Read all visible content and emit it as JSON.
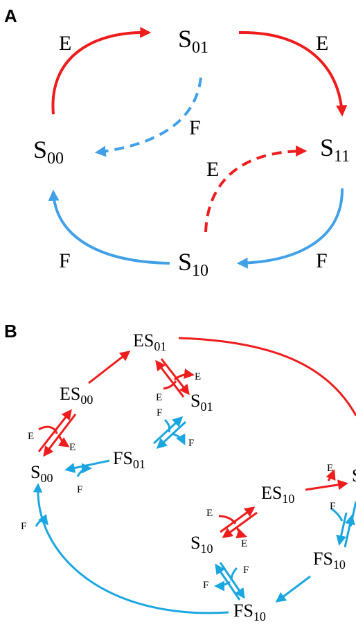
{
  "colors": {
    "E_red": "#ee1c1c",
    "F_blue": "#41a0e6",
    "F_cyan": "#1aa6e0"
  },
  "panel_a": {
    "label": "A",
    "states": {
      "s01": {
        "base": "S",
        "sub": "01"
      },
      "s00": {
        "base": "S",
        "sub": "00"
      },
      "s11": {
        "base": "S",
        "sub": "11"
      },
      "s10": {
        "base": "S",
        "sub": "10"
      }
    },
    "edge_labels": {
      "e_top_left": "E",
      "e_top_right": "E",
      "f_center": "F",
      "e_center": "E",
      "f_bottom_left": "F",
      "f_bottom_right": "F"
    }
  },
  "panel_b": {
    "label": "B",
    "nodes": {
      "es01": {
        "base": "ES",
        "sub": "01"
      },
      "es00": {
        "base": "ES",
        "sub": "00"
      },
      "s01": {
        "base": "S",
        "sub": "01"
      },
      "fs01": {
        "base": "FS",
        "sub": "01"
      },
      "s00": {
        "base": "S",
        "sub": "00"
      },
      "es10": {
        "base": "ES",
        "sub": "10"
      },
      "s10": {
        "base": "S",
        "sub": "10"
      },
      "fs10_right": {
        "base": "FS",
        "sub": "10"
      },
      "fs10_bottom": {
        "base": "FS",
        "sub": "10"
      },
      "s11_cut": {
        "base": "S",
        "sub": ""
      }
    },
    "small_labels": {
      "e1": "E",
      "e2": "E",
      "e3": "E",
      "e4": "E",
      "e5": "E",
      "e6": "E",
      "e7": "E",
      "f1": "F",
      "f2": "F",
      "f3": "F",
      "f4": "F",
      "f5": "F",
      "f6": "F",
      "f7": "F"
    }
  }
}
